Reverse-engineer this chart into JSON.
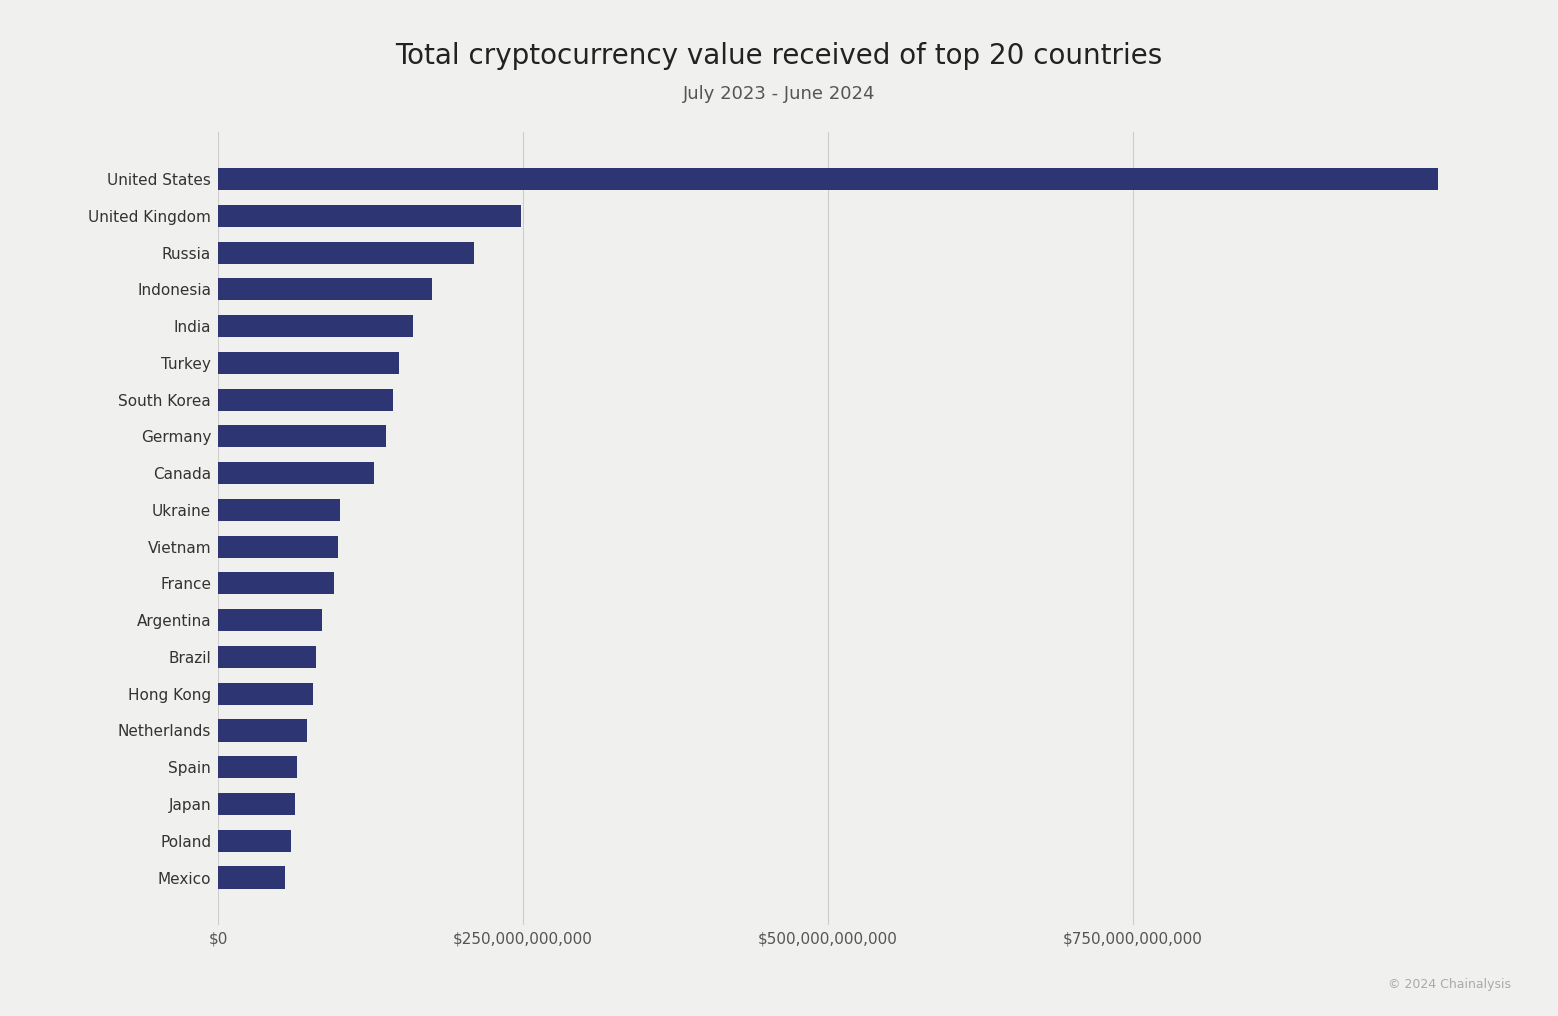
{
  "title": "Total cryptocurrency value received of top 20 countries",
  "subtitle": "July 2023 - June 2024",
  "copyright": "© 2024 Chainalysis",
  "countries": [
    "United States",
    "United Kingdom",
    "Russia",
    "Indonesia",
    "India",
    "Turkey",
    "South Korea",
    "Germany",
    "Canada",
    "Ukraine",
    "Vietnam",
    "France",
    "Argentina",
    "Brazil",
    "Hong Kong",
    "Netherlands",
    "Spain",
    "Japan",
    "Poland",
    "Mexico"
  ],
  "values": [
    1000000000000,
    248000000000,
    210000000000,
    175000000000,
    160000000000,
    148000000000,
    143000000000,
    138000000000,
    128000000000,
    100000000000,
    98000000000,
    95000000000,
    85000000000,
    80000000000,
    78000000000,
    73000000000,
    65000000000,
    63000000000,
    60000000000,
    55000000000
  ],
  "bar_color": "#2d3572",
  "background_color": "#f0f0ee",
  "title_fontsize": 20,
  "subtitle_fontsize": 13,
  "label_fontsize": 11,
  "tick_fontsize": 11,
  "xlim": [
    0,
    1060000000000
  ],
  "xticks": [
    0,
    250000000000,
    500000000000,
    750000000000
  ],
  "xtick_labels": [
    "$0",
    "$250,000,000,000",
    "$500,000,000,000",
    "$750,000,000,000"
  ]
}
